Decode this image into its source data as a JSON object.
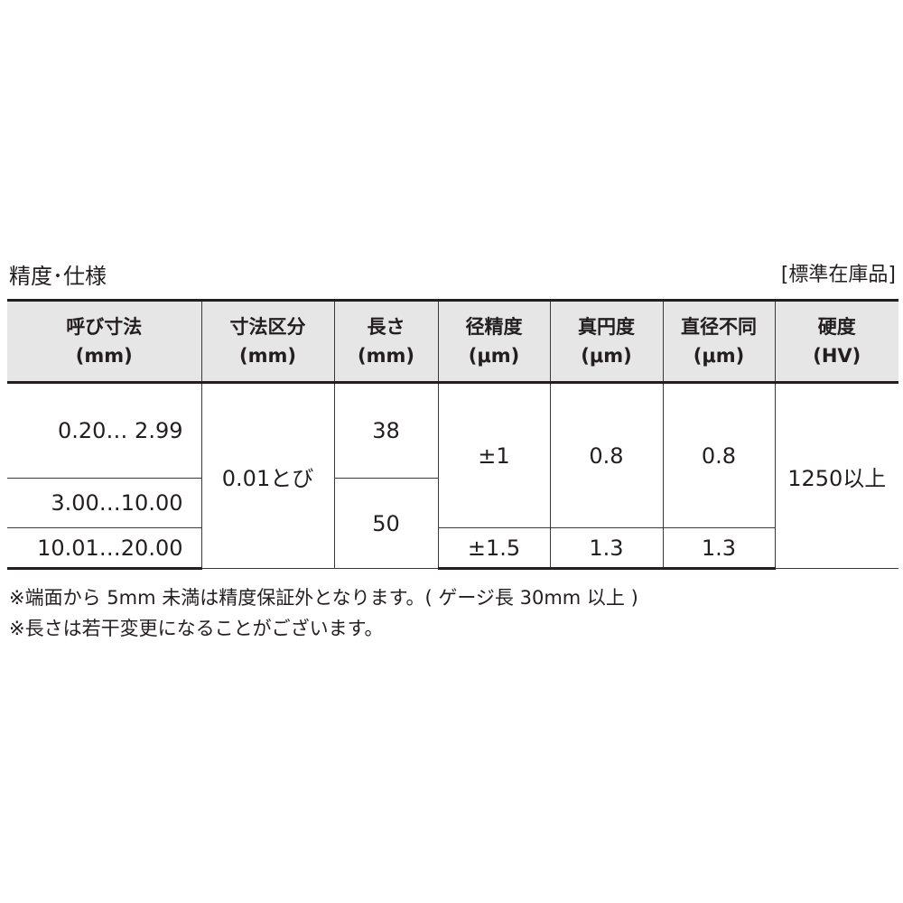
{
  "title": "精度･仕様",
  "stock_label": "[標準在庫品]",
  "table": {
    "headers": [
      {
        "line1": "呼び寸法",
        "line2": "(mm)"
      },
      {
        "line1": "寸法区分",
        "line2": "(mm)"
      },
      {
        "line1": "長さ",
        "line2": "(mm)"
      },
      {
        "line1": "径精度",
        "line2": "(μm)"
      },
      {
        "line1": "真円度",
        "line2": "(μm)"
      },
      {
        "line1": "直径不同",
        "line2": "(μm)"
      },
      {
        "line1": "硬度",
        "line2": "(HV)"
      }
    ],
    "nominal": [
      "0.20…  2.99",
      "3.00…10.00",
      "10.01…20.00"
    ],
    "increment": "0.01とび",
    "length": [
      "38",
      "50"
    ],
    "diameter_accuracy": [
      "±1",
      "±1.5"
    ],
    "roundness": [
      "0.8",
      "1.3"
    ],
    "diameter_variation": [
      "0.8",
      "1.3"
    ],
    "hardness": "1250以上"
  },
  "notes": [
    "※端面から 5mm 未満は精度保証外となります。( ゲージ長 30mm 以上 )",
    "※長さは若干変更になることがございます。"
  ]
}
